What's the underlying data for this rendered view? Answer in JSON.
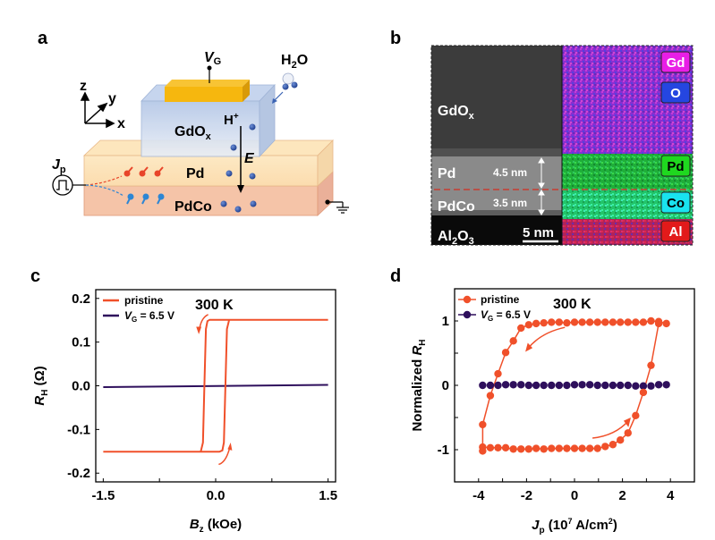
{
  "panels": {
    "a": {
      "label": "a",
      "gate_voltage_label": "V",
      "gate_voltage_sub": "G",
      "water_label": "H",
      "water_sub": "2",
      "water_tail": "O",
      "proton_label": "H",
      "proton_sup": "+",
      "field_label": "E",
      "oxide_label": "GdO",
      "oxide_sub": "x",
      "layer_top": "Pd",
      "layer_bottom": "PdCo",
      "pulse_label": "J",
      "pulse_sub": "p",
      "axis_z": "z",
      "axis_y": "y",
      "axis_x": "x"
    },
    "b": {
      "label": "b",
      "layers": [
        {
          "name": "GdO",
          "sub": "x"
        },
        {
          "name": "Pd",
          "thickness": "4.5 nm"
        },
        {
          "name": "PdCo",
          "thickness": "3.5 nm"
        },
        {
          "name": "Al",
          "sub": "2",
          "name2": "O",
          "sub2": "3"
        }
      ],
      "scale_bar": "5 nm",
      "elements": [
        {
          "symbol": "Gd",
          "color": "#e81ee6"
        },
        {
          "symbol": "O",
          "color": "#2546e0"
        },
        {
          "symbol": "Pd",
          "color": "#1fd81f"
        },
        {
          "symbol": "Co",
          "color": "#19e3ef"
        },
        {
          "symbol": "Al",
          "color": "#e21a1a"
        }
      ]
    },
    "c": {
      "label": "c"
    },
    "d": {
      "label": "d"
    }
  },
  "chart_data": [
    {
      "type": "line",
      "panel": "c",
      "annotation": "300 K",
      "xlabel": "B",
      "xlabel_sub": "z",
      "xlabel_unit": " (kOe)",
      "ylabel": "R",
      "ylabel_sub": "H",
      "ylabel_unit": " (Ω)",
      "xlim": [
        -1.6,
        1.6
      ],
      "ylim": [
        -0.22,
        0.22
      ],
      "xticks": [
        -1.5,
        0.0,
        1.5
      ],
      "xtick_labels": [
        "-1.5",
        "0.0",
        "1.5"
      ],
      "xminor": [
        -1.5,
        -0.75,
        0.0,
        0.75,
        1.5
      ],
      "yticks": [
        -0.2,
        -0.1,
        0.0,
        0.1,
        0.2
      ],
      "ytick_labels": [
        "-0.2",
        "-0.1",
        "0.0",
        "0.1",
        "0.2"
      ],
      "legend_position": "top-left",
      "series": [
        {
          "name": "pristine",
          "color": "#f0502a",
          "x": [
            -1.5,
            -0.35,
            -0.26,
            -0.24,
            -0.2,
            -0.17,
            0.03,
            0.06,
            0.08,
            0.12,
            0.14,
            0.18,
            0.21,
            1.5,
            0.18,
            0.14,
            -0.06,
            -0.09,
            -0.11,
            -0.14,
            -0.16,
            -0.2,
            -0.22,
            -1.5
          ],
          "y": [
            -0.151,
            -0.151,
            -0.15,
            -0.147,
            -0.12,
            0.145,
            0.15,
            0.151,
            0.151,
            0.151,
            0.151,
            0.151,
            0.151,
            0.151,
            0.151,
            0.15,
            0.15,
            0.146,
            0.12,
            -0.14,
            -0.148,
            -0.15,
            -0.151,
            -0.151
          ],
          "loop": [
            {
              "x": -1.5,
              "y": -0.151
            },
            {
              "x": 0.05,
              "y": -0.151
            },
            {
              "x": 0.09,
              "y": -0.148
            },
            {
              "x": 0.11,
              "y": -0.13
            },
            {
              "x": 0.13,
              "y": 0.0
            },
            {
              "x": 0.15,
              "y": 0.13
            },
            {
              "x": 0.18,
              "y": 0.151
            },
            {
              "x": 1.5,
              "y": 0.151
            },
            {
              "x": -0.08,
              "y": 0.151
            },
            {
              "x": -0.11,
              "y": 0.148
            },
            {
              "x": -0.13,
              "y": 0.13
            },
            {
              "x": -0.15,
              "y": 0.0
            },
            {
              "x": -0.17,
              "y": -0.13
            },
            {
              "x": -0.2,
              "y": -0.151
            },
            {
              "x": -1.5,
              "y": -0.151
            }
          ]
        },
        {
          "name": "V_G = 6.5 V",
          "legend": "V",
          "legend_sub": "G",
          "legend_tail": " = 6.5 V",
          "color": "#2e0f5c",
          "x": [
            -1.5,
            1.5
          ],
          "y": [
            -0.003,
            0.002
          ]
        }
      ]
    },
    {
      "type": "scatter",
      "panel": "d",
      "annotation": "300 K",
      "xlabel": "J",
      "xlabel_sub": "p",
      "xlabel_unit_pre": " (10",
      "xlabel_sup": "7",
      "xlabel_unit_mid": " A/cm",
      "xlabel_sup2": "2",
      "xlabel_unit_post": ")",
      "ylabel": "Normalized R",
      "ylabel_sub": "H",
      "xlim": [
        -5,
        5
      ],
      "ylim": [
        -1.5,
        1.5
      ],
      "xticks": [
        -4,
        -2,
        0,
        2,
        4
      ],
      "xtick_labels": [
        "-4",
        "-2",
        "0",
        "2",
        "4"
      ],
      "xminor": [
        -5,
        -4,
        -3,
        -2,
        -1,
        0,
        1,
        2,
        3,
        4,
        5
      ],
      "yticks": [
        -1,
        0,
        1
      ],
      "ytick_labels": [
        "-1",
        "0",
        "1"
      ],
      "yminor": [
        -1.5,
        -1,
        -0.5,
        0,
        0.5,
        1,
        1.5
      ],
      "legend_position": "top-left",
      "series": [
        {
          "name": "pristine",
          "color": "#f0502a",
          "branch_down": {
            "x": [
              3.83,
              3.51,
              3.19,
              2.87,
              2.55,
              2.23,
              1.91,
              1.6,
              1.28,
              0.96,
              0.64,
              0.32,
              0.0,
              -0.32,
              -0.64,
              -0.96,
              -1.28,
              -1.6,
              -1.91,
              -2.23,
              -2.55,
              -2.87,
              -3.19,
              -3.51,
              -3.83
            ],
            "y": [
              0.96,
              0.99,
              1.0,
              0.98,
              0.98,
              0.98,
              0.98,
              0.98,
              0.98,
              0.98,
              0.98,
              0.98,
              0.98,
              0.97,
              0.98,
              0.98,
              0.97,
              0.96,
              0.94,
              0.89,
              0.69,
              0.51,
              0.18,
              -0.16,
              -0.61
            ]
          },
          "branch_up": {
            "x": [
              -3.83,
              -3.83,
              -3.51,
              -3.19,
              -2.87,
              -2.55,
              -2.23,
              -1.91,
              -1.6,
              -1.28,
              -0.96,
              -0.64,
              -0.32,
              0.0,
              0.32,
              0.64,
              0.96,
              1.28,
              1.6,
              1.91,
              2.23,
              2.55,
              2.87,
              3.19,
              3.51
            ],
            "y": [
              -1.02,
              -0.96,
              -0.97,
              -0.97,
              -0.97,
              -0.99,
              -0.99,
              -0.99,
              -0.98,
              -0.99,
              -0.98,
              -0.98,
              -0.98,
              -0.98,
              -0.98,
              -0.98,
              -0.98,
              -0.95,
              -0.92,
              -0.85,
              -0.74,
              -0.47,
              -0.11,
              0.31,
              0.96
            ]
          }
        },
        {
          "name": "V_G = 6.5 V",
          "legend": "V",
          "legend_sub": "G",
          "legend_tail": " = 6.5 V",
          "color": "#2e0f5c",
          "x": [
            -3.83,
            -3.51,
            -3.19,
            -2.87,
            -2.55,
            -2.23,
            -1.91,
            -1.6,
            -1.28,
            -0.96,
            -0.64,
            -0.32,
            0.0,
            0.32,
            0.64,
            0.96,
            1.28,
            1.6,
            1.91,
            2.23,
            2.55,
            2.87,
            3.19,
            3.51,
            3.83
          ],
          "y": [
            0.0,
            0.0,
            0.0,
            0.01,
            0.01,
            0.01,
            0.0,
            0.0,
            0.0,
            0.0,
            0.0,
            0.0,
            0.01,
            0.01,
            0.01,
            0.0,
            0.0,
            0.0,
            0.0,
            0.0,
            -0.01,
            -0.01,
            -0.01,
            0.01,
            0.01
          ]
        }
      ]
    }
  ]
}
